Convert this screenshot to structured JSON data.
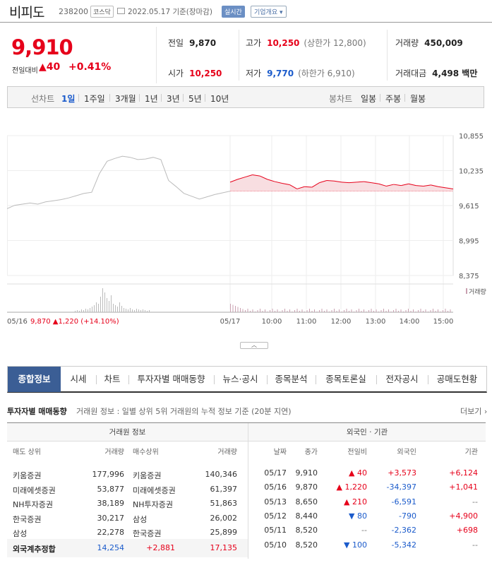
{
  "header": {
    "name": "비피도",
    "code": "238200",
    "market": "코스닥",
    "date": "2022.05.17 기준(장마감)",
    "realtime": "실시간",
    "company": "기업개요"
  },
  "price": {
    "current": "9,910",
    "change_label": "전일대비",
    "change_value": "40",
    "change_pct": "+0.41%"
  },
  "info": {
    "prev_label": "전일",
    "prev": "9,870",
    "high_label": "고가",
    "high": "10,250",
    "upper_limit": "(상한가 12,800)",
    "volume_label": "거래량",
    "volume": "450,009",
    "open_label": "시가",
    "open": "10,250",
    "low_label": "저가",
    "low": "9,770",
    "lower_limit": "(하한가 6,910)",
    "amount_label": "거래대금",
    "amount": "4,498 백만"
  },
  "period": {
    "line_label": "선차트",
    "line_items": [
      "1일",
      "1주일",
      "3개월",
      "1년",
      "3년",
      "5년",
      "10년"
    ],
    "candle_label": "봉차트",
    "candle_items": [
      "일봉",
      "주봉",
      "월봉"
    ]
  },
  "chart_data": {
    "type": "line",
    "y_ticks": [
      "10,855",
      "10,235",
      "9,615",
      "8,995",
      "8,375"
    ],
    "ylim": [
      8375,
      10855
    ],
    "x_ticks": [
      "05/17",
      "10:00",
      "11:00",
      "12:00",
      "13:00",
      "14:00",
      "15:00"
    ],
    "prev_day_label": "05/16",
    "prev_day_info": "9,870 ▲1,220 (+14.10%)",
    "volume_legend": "거래량",
    "baseline": 9870,
    "series": [
      {
        "values": [
          9560,
          9620,
          9640,
          9660,
          9640,
          9680,
          9700,
          9720,
          9750,
          9790,
          9830,
          9850,
          10180,
          10400,
          10450,
          10490,
          10470,
          10430,
          10440,
          10470,
          10430,
          10060,
          9950,
          9830,
          9780,
          9730,
          9770,
          9810,
          9840,
          9870
        ]
      },
      {
        "values": [
          10030,
          10080,
          10120,
          10160,
          10140,
          10080,
          10040,
          10010,
          9985,
          9910,
          9950,
          9940,
          10020,
          10060,
          10050,
          10030,
          10020,
          10030,
          10040,
          10020,
          10000,
          9960,
          9990,
          9970,
          10000,
          9970,
          9960,
          9980,
          9950,
          9930,
          9910
        ]
      }
    ]
  },
  "tabs": [
    "종합정보",
    "시세",
    "차트",
    "투자자별 매매동향",
    "뉴스·공시",
    "종목분석",
    "종목토론실",
    "전자공시",
    "공매도현황"
  ],
  "investor": {
    "title": "투자자별 매매동향",
    "desc": "거래원 정보 : 일별 상위 5위 거래원의 누적 정보 기준 (20분 지연)",
    "more": "더보기",
    "broker_header": "거래원 정보",
    "foreign_header": "외국인 · 기관",
    "cols_left": [
      "매도 상위",
      "거래량",
      "매수상위",
      "거래량"
    ],
    "cols_right": [
      "날짜",
      "종가",
      "전일비",
      "외국인",
      "기관"
    ],
    "brokers": [
      [
        "키움증권",
        "177,996",
        "키움증권",
        "140,346"
      ],
      [
        "미래에셋증권",
        "53,877",
        "미래에셋증권",
        "61,397"
      ],
      [
        "NH투자증권",
        "38,189",
        "NH투자증권",
        "51,863"
      ],
      [
        "한국증권",
        "30,217",
        "삼성",
        "26,002"
      ],
      [
        "삼성",
        "22,278",
        "한국증권",
        "25,899"
      ]
    ],
    "foreign_total": [
      "외국계추정합",
      "14,254",
      "+2,881",
      "17,135"
    ],
    "daily": [
      [
        "05/17",
        "9,910",
        "▲ 40",
        "+3,573",
        "+6,124"
      ],
      [
        "05/16",
        "9,870",
        "▲ 1,220",
        "-34,397",
        "+1,041"
      ],
      [
        "05/13",
        "8,650",
        "▲ 210",
        "-6,591",
        "--"
      ],
      [
        "05/12",
        "8,440",
        "▼ 80",
        "-790",
        "+4,900"
      ],
      [
        "05/11",
        "8,520",
        "--",
        "-2,362",
        "+698"
      ],
      [
        "05/10",
        "8,520",
        "▼ 100",
        "-5,342",
        "--"
      ]
    ]
  }
}
